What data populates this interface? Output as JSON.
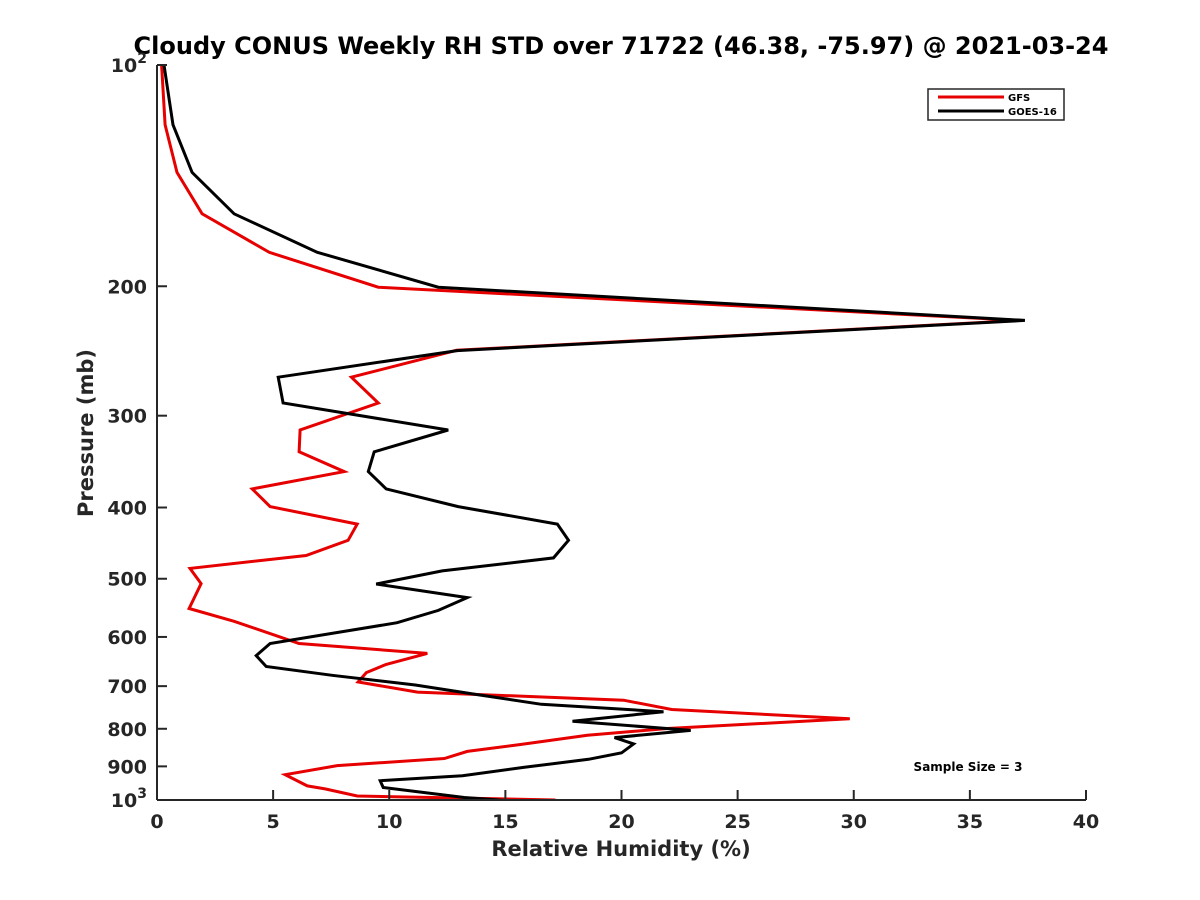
{
  "chart_data": {
    "type": "line",
    "title": "Cloudy CONUS Weekly RH STD over 71722 (46.38, -75.97) @ 2021-03-24",
    "xlabel": "Relative Humidity (%)",
    "ylabel": "Pressure (mb)",
    "xlim": [
      0,
      40
    ],
    "ylim": [
      100,
      1000
    ],
    "yscale": "log",
    "yreversed": true,
    "grid": false,
    "x_ticks": [
      0,
      5,
      10,
      15,
      20,
      25,
      30,
      35,
      40
    ],
    "x_tick_labels": [
      "0",
      "5",
      "10",
      "15",
      "20",
      "25",
      "30",
      "35",
      "40"
    ],
    "y_ticks": [
      100,
      200,
      300,
      400,
      500,
      600,
      700,
      800,
      900,
      1000
    ],
    "y_tick_labels": [
      {
        "base": "10",
        "sup": "2"
      },
      {
        "text": "200"
      },
      {
        "text": "300"
      },
      {
        "text": "400"
      },
      {
        "text": "500"
      },
      {
        "text": "600"
      },
      {
        "text": "700"
      },
      {
        "text": "800"
      },
      {
        "text": "900"
      },
      {
        "base": "10",
        "sup": "3"
      }
    ],
    "legend": {
      "position": "top-right",
      "entries": [
        "GFS",
        "GOES-16"
      ]
    },
    "annotation": "Sample Size = 3",
    "series": [
      {
        "name": "GFS",
        "color": "#e60000",
        "points": [
          [
            0.2,
            100
          ],
          [
            0.35,
            120.6
          ],
          [
            0.86,
            140
          ],
          [
            1.94,
            159.4
          ],
          [
            4.83,
            179.8
          ],
          [
            9.53,
            200.6
          ],
          [
            37.2,
            222.6
          ],
          [
            12.9,
            244.4
          ],
          [
            8.37,
            265.9
          ],
          [
            9.53,
            288.3
          ],
          [
            6.16,
            313.8
          ],
          [
            6.12,
            335.9
          ],
          [
            8.06,
            357.4
          ],
          [
            4.1,
            377.3
          ],
          [
            4.87,
            398.8
          ],
          [
            8.62,
            421.3
          ],
          [
            8.23,
            443.3
          ],
          [
            6.42,
            464.9
          ],
          [
            1.42,
            484.1
          ],
          [
            1.9,
            507.7
          ],
          [
            1.38,
            548.8
          ],
          [
            3.32,
            571.3
          ],
          [
            6.12,
            612.4
          ],
          [
            11.64,
            631.8
          ],
          [
            9.87,
            653.8
          ],
          [
            9.01,
            670.9
          ],
          [
            8.66,
            690.9
          ],
          [
            11.21,
            713.2
          ],
          [
            20.09,
            731.5
          ],
          [
            22.16,
            753.1
          ],
          [
            29.83,
            775.4
          ],
          [
            21.98,
            799.2
          ],
          [
            18.53,
            816.6
          ],
          [
            15.69,
            840.2
          ],
          [
            13.36,
            858.9
          ],
          [
            12.37,
            878.1
          ],
          [
            7.76,
            897.7
          ],
          [
            5.52,
            923.8
          ],
          [
            6.47,
            956.7
          ],
          [
            7.24,
            965.9
          ],
          [
            8.62,
            987.7
          ],
          [
            17.16,
            1000
          ]
        ]
      },
      {
        "name": "GOES-16",
        "color": "#000000",
        "points": [
          [
            0.3,
            100
          ],
          [
            0.69,
            120.6
          ],
          [
            1.51,
            140
          ],
          [
            3.32,
            159.4
          ],
          [
            6.9,
            179.8
          ],
          [
            12.11,
            200.6
          ],
          [
            37.37,
            222.6
          ],
          [
            12.93,
            244.7
          ],
          [
            5.22,
            265.9
          ],
          [
            5.43,
            288.3
          ],
          [
            12.54,
            313.8
          ],
          [
            9.35,
            335.9
          ],
          [
            9.1,
            357.4
          ],
          [
            9.87,
            377.3
          ],
          [
            12.97,
            398.8
          ],
          [
            17.24,
            421.3
          ],
          [
            17.72,
            443.3
          ],
          [
            17.07,
            468.4
          ],
          [
            12.28,
            487.9
          ],
          [
            9.44,
            508.3
          ],
          [
            13.36,
            530.4
          ],
          [
            12.11,
            552.2
          ],
          [
            10.34,
            573.9
          ],
          [
            4.87,
            612.4
          ],
          [
            4.27,
            636.2
          ],
          [
            4.7,
            658.3
          ],
          [
            7.54,
            676.6
          ],
          [
            11.12,
            697.5
          ],
          [
            13.79,
            718.8
          ],
          [
            16.55,
            740.9
          ],
          [
            21.81,
            758.4
          ],
          [
            17.89,
            781.2
          ],
          [
            22.98,
            804.2
          ],
          [
            19.7,
            822.5
          ],
          [
            20.52,
            838.8
          ],
          [
            20.0,
            862.8
          ],
          [
            18.58,
            880.2
          ],
          [
            15.78,
            902.8
          ],
          [
            13.15,
            926.8
          ],
          [
            9.61,
            941.2
          ],
          [
            9.74,
            961.7
          ],
          [
            13.23,
            992.3
          ],
          [
            16.21,
            1008
          ],
          [
            12.28,
            1023
          ],
          [
            11.5,
            1026
          ]
        ]
      }
    ]
  }
}
